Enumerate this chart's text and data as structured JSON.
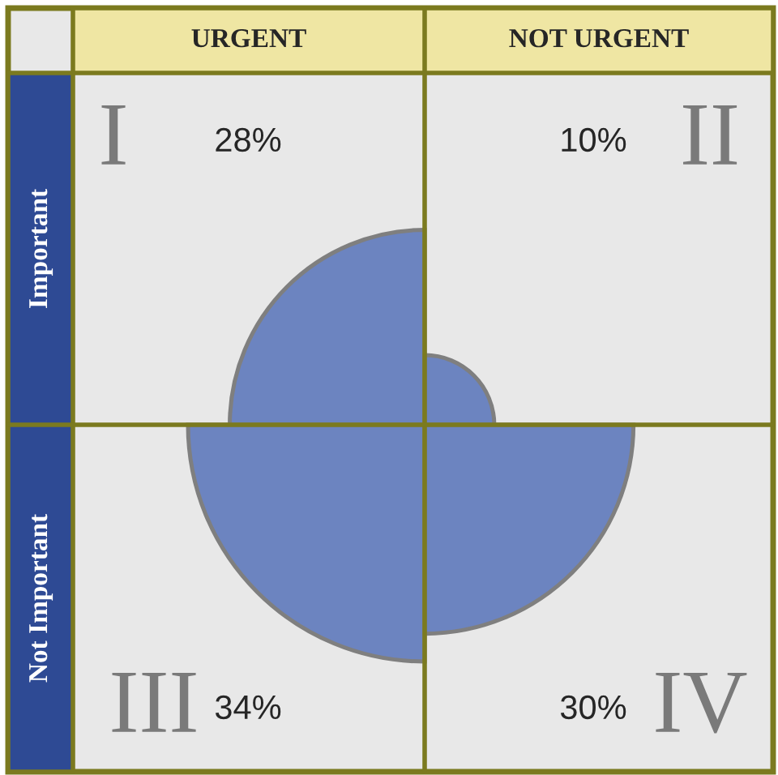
{
  "chart_data": {
    "type": "other",
    "categories": [
      "I",
      "II",
      "III",
      "IV"
    ],
    "values": [
      28,
      10,
      34,
      30
    ],
    "value_labels": [
      "28%",
      "10%",
      "34%",
      "30%"
    ],
    "color": "#6c84c0",
    "annotations": [
      "URGENT",
      "NOT URGENT",
      "Important",
      "Not Important"
    ]
  }
}
